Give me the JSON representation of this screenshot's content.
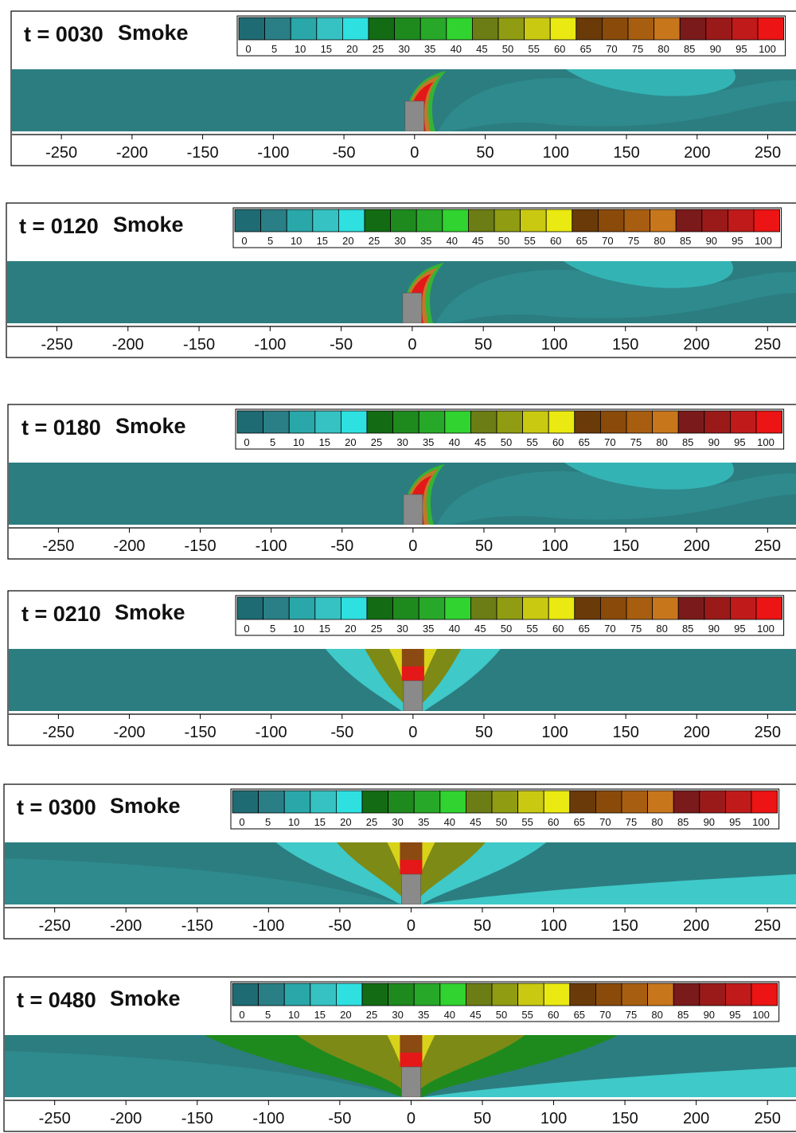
{
  "colorbar": {
    "ticks": [
      "0",
      "5",
      "10",
      "15",
      "20",
      "25",
      "30",
      "35",
      "40",
      "45",
      "50",
      "55",
      "60",
      "65",
      "70",
      "75",
      "80",
      "85",
      "90",
      "95",
      "100"
    ],
    "colors": [
      "#1e6b73",
      "#2a7f86",
      "#2aa7a9",
      "#36c2c2",
      "#2fe0e0",
      "#136c13",
      "#1e8a1e",
      "#28a828",
      "#30d330",
      "#6b7d14",
      "#909c12",
      "#c9c912",
      "#eaea12",
      "#6a3a08",
      "#8a4a0a",
      "#a85e10",
      "#c8761c",
      "#7a1a1a",
      "#9a1a1a",
      "#c01a1a",
      "#ec1414"
    ]
  },
  "chart_data": [
    {
      "type": "heatmap",
      "title": "t = 0030",
      "ylabel": "Smoke",
      "x_ticks": [
        -250,
        -200,
        -150,
        -100,
        -50,
        0,
        50,
        100,
        150,
        200,
        250
      ],
      "xlim": [
        -285,
        270
      ],
      "value_range": [
        0,
        100
      ]
    },
    {
      "type": "heatmap",
      "title": "t = 0120",
      "ylabel": "Smoke",
      "x_ticks": [
        -250,
        -200,
        -150,
        -100,
        -50,
        0,
        50,
        100,
        150,
        200,
        250
      ],
      "xlim": [
        -285,
        270
      ],
      "value_range": [
        0,
        100
      ]
    },
    {
      "type": "heatmap",
      "title": "t = 0180",
      "ylabel": "Smoke",
      "x_ticks": [
        -250,
        -200,
        -150,
        -100,
        -50,
        0,
        50,
        100,
        150,
        200,
        250
      ],
      "xlim": [
        -285,
        270
      ],
      "value_range": [
        0,
        100
      ]
    },
    {
      "type": "heatmap",
      "title": "t = 0210",
      "ylabel": "Smoke",
      "x_ticks": [
        -250,
        -200,
        -150,
        -100,
        -50,
        0,
        50,
        100,
        150,
        200,
        250
      ],
      "xlim": [
        -285,
        270
      ],
      "value_range": [
        0,
        100
      ]
    },
    {
      "type": "heatmap",
      "title": "t = 0300",
      "ylabel": "Smoke",
      "x_ticks": [
        -250,
        -200,
        -150,
        -100,
        -50,
        0,
        50,
        100,
        150,
        200,
        250
      ],
      "xlim": [
        -285,
        270
      ],
      "value_range": [
        0,
        100
      ]
    },
    {
      "type": "heatmap",
      "title": "t = 0480",
      "ylabel": "Smoke",
      "x_ticks": [
        -250,
        -200,
        -150,
        -100,
        -50,
        0,
        50,
        100,
        150,
        200,
        250
      ],
      "xlim": [
        -285,
        270
      ],
      "value_range": [
        0,
        100
      ]
    }
  ]
}
